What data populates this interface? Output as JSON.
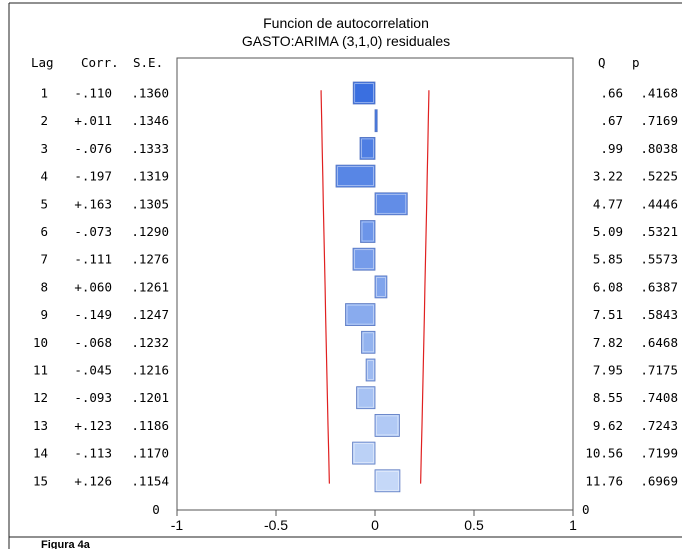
{
  "figure_caption": "Figura 4a",
  "chart_data": {
    "type": "bar",
    "orientation": "horizontal",
    "title": "Funcion de autocorrelation",
    "subtitle": "GASTO:ARIMA (3,1,0) residuales",
    "columns": {
      "lag": "Lag",
      "corr": "Corr.",
      "se": "S.E.",
      "q": "Q",
      "p": "p"
    },
    "rows": [
      {
        "lag": "1",
        "corr": "-.110",
        "se": ".1360",
        "q": ".66",
        "p": ".4168",
        "value": -0.11,
        "se_value": 0.136
      },
      {
        "lag": "2",
        "corr": "+.011",
        "se": ".1346",
        "q": ".67",
        "p": ".7169",
        "value": 0.011,
        "se_value": 0.1346
      },
      {
        "lag": "3",
        "corr": "-.076",
        "se": ".1333",
        "q": ".99",
        "p": ".8038",
        "value": -0.076,
        "se_value": 0.1333
      },
      {
        "lag": "4",
        "corr": "-.197",
        "se": ".1319",
        "q": "3.22",
        "p": ".5225",
        "value": -0.197,
        "se_value": 0.1319
      },
      {
        "lag": "5",
        "corr": "+.163",
        "se": ".1305",
        "q": "4.77",
        "p": ".4446",
        "value": 0.163,
        "se_value": 0.1305
      },
      {
        "lag": "6",
        "corr": "-.073",
        "se": ".1290",
        "q": "5.09",
        "p": ".5321",
        "value": -0.073,
        "se_value": 0.129
      },
      {
        "lag": "7",
        "corr": "-.111",
        "se": ".1276",
        "q": "5.85",
        "p": ".5573",
        "value": -0.111,
        "se_value": 0.1276
      },
      {
        "lag": "8",
        "corr": "+.060",
        "se": ".1261",
        "q": "6.08",
        "p": ".6387",
        "value": 0.06,
        "se_value": 0.1261
      },
      {
        "lag": "9",
        "corr": "-.149",
        "se": ".1247",
        "q": "7.51",
        "p": ".5843",
        "value": -0.149,
        "se_value": 0.1247
      },
      {
        "lag": "10",
        "corr": "-.068",
        "se": ".1232",
        "q": "7.82",
        "p": ".6468",
        "value": -0.068,
        "se_value": 0.1232
      },
      {
        "lag": "11",
        "corr": "-.045",
        "se": ".1216",
        "q": "7.95",
        "p": ".7175",
        "value": -0.045,
        "se_value": 0.1216
      },
      {
        "lag": "12",
        "corr": "-.093",
        "se": ".1201",
        "q": "8.55",
        "p": ".7408",
        "value": -0.093,
        "se_value": 0.1201
      },
      {
        "lag": "13",
        "corr": "+.123",
        "se": ".1186",
        "q": "9.62",
        "p": ".7243",
        "value": 0.123,
        "se_value": 0.1186
      },
      {
        "lag": "14",
        "corr": "-.113",
        "se": ".1170",
        "q": "10.56",
        "p": ".7199",
        "value": -0.113,
        "se_value": 0.117
      },
      {
        "lag": "15",
        "corr": "+.126",
        "se": ".1154",
        "q": "11.76",
        "p": ".6969",
        "value": 0.126,
        "se_value": 0.1154
      }
    ],
    "xlim": [
      -1,
      1
    ],
    "x_ticks": [
      "-1",
      "-0.5",
      "0",
      "0.5",
      "1"
    ],
    "zero_row_label": "0",
    "confidence_limit_multiplier": 2,
    "confidence_line_color": "#e02020",
    "bar_color_dark": "#3a6fe0",
    "bar_color_light": "#c5d8f8",
    "grid": false
  }
}
